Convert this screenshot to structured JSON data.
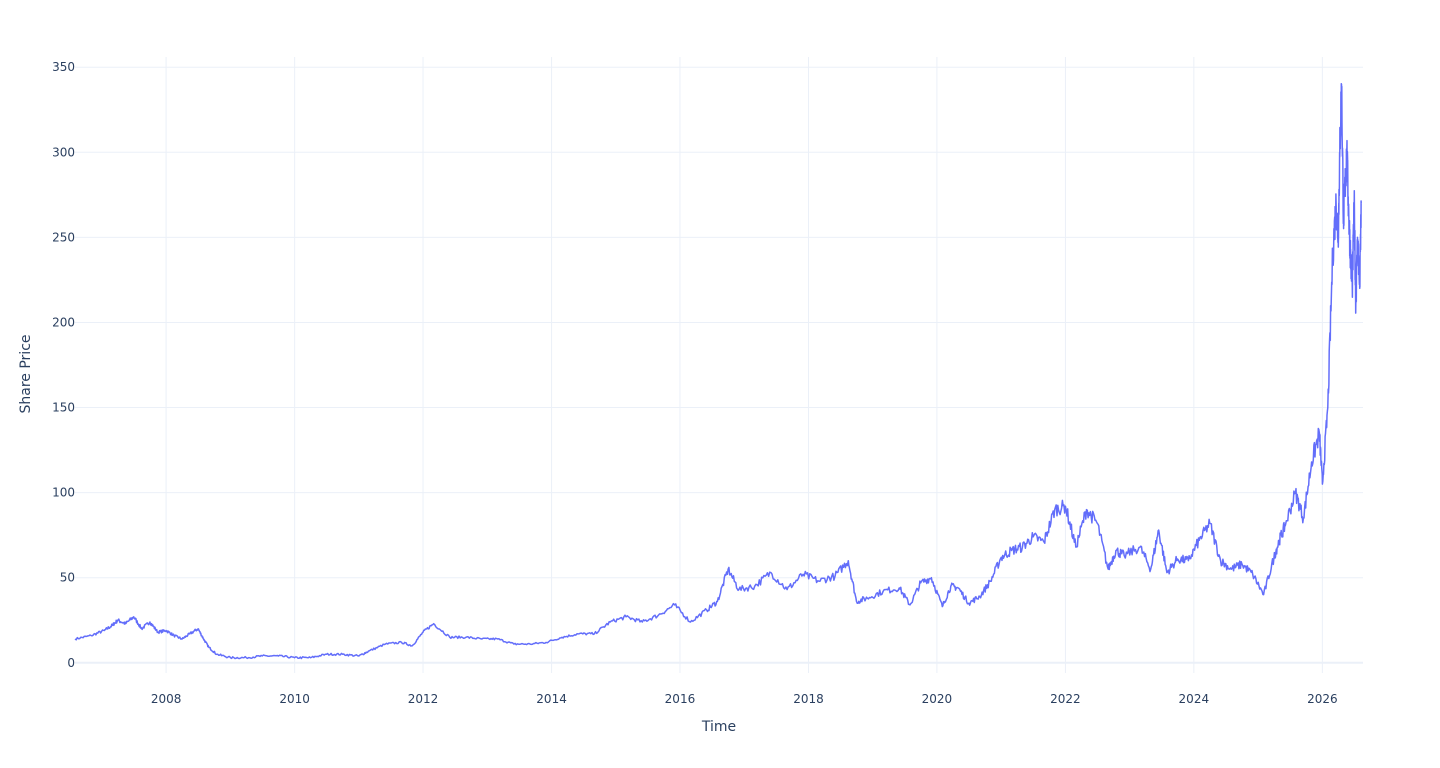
{
  "chart_data": {
    "type": "line",
    "xlabel": "Time",
    "ylabel": "Share Price",
    "xlim": [
      "2006-08-01",
      "2026-08-20"
    ],
    "ylim": [
      -6,
      356
    ],
    "x_ticks": [
      "2008",
      "2010",
      "2012",
      "2014",
      "2016",
      "2018",
      "2020",
      "2022",
      "2024",
      "2026"
    ],
    "y_ticks": [
      0,
      50,
      100,
      150,
      200,
      250,
      300,
      350
    ],
    "grid": true,
    "legend": "none",
    "colors": {
      "line": "#636efa",
      "grid": "#ebf0f8",
      "text": "#2a3f5f",
      "background": "#ffffff"
    },
    "series": [
      {
        "x": [
          "2006-08-01",
          "2006-11-01",
          "2007-01-15",
          "2007-03-01",
          "2007-04-01",
          "2007-05-15",
          "2007-07-01",
          "2007-08-15",
          "2007-10-01",
          "2007-11-15",
          "2008-01-01",
          "2008-02-15",
          "2008-04-01",
          "2008-05-15",
          "2008-07-01",
          "2008-08-01",
          "2008-09-01",
          "2008-10-15",
          "2009-01-01",
          "2009-04-01",
          "2009-07-01",
          "2009-10-01",
          "2010-01-01",
          "2010-04-01",
          "2010-07-01",
          "2010-10-01",
          "2011-01-01",
          "2011-03-01",
          "2011-06-01",
          "2011-09-01",
          "2011-11-01",
          "2012-01-01",
          "2012-03-01",
          "2012-06-01",
          "2012-09-01",
          "2012-12-01",
          "2013-03-01",
          "2013-06-01",
          "2013-09-01",
          "2013-12-01",
          "2014-03-01",
          "2014-06-01",
          "2014-09-01",
          "2014-12-01",
          "2015-03-01",
          "2015-06-01",
          "2015-09-01",
          "2015-12-01",
          "2016-03-01",
          "2016-06-01",
          "2016-08-01",
          "2016-10-01",
          "2016-12-01",
          "2017-03-01",
          "2017-06-01",
          "2017-09-01",
          "2017-12-01",
          "2018-03-01",
          "2018-06-01",
          "2018-08-15",
          "2018-10-01",
          "2018-12-01",
          "2019-03-01",
          "2019-06-01",
          "2019-08-01",
          "2019-10-01",
          "2019-12-01",
          "2020-02-01",
          "2020-03-20",
          "2020-05-01",
          "2020-07-01",
          "2020-09-01",
          "2020-11-01",
          "2021-01-01",
          "2021-03-01",
          "2021-05-01",
          "2021-07-01",
          "2021-09-01",
          "2021-11-01",
          "2022-01-01",
          "2022-03-01",
          "2022-05-01",
          "2022-07-01",
          "2022-09-01",
          "2022-10-15",
          "2022-12-01",
          "2023-03-01",
          "2023-05-01",
          "2023-06-15",
          "2023-08-01",
          "2023-10-01",
          "2023-12-01",
          "2024-02-01",
          "2024-04-01",
          "2024-06-01",
          "2024-08-01",
          "2024-10-01",
          "2024-12-01",
          "2025-02-01",
          "2025-04-01",
          "2025-05-01",
          "2025-06-01",
          "2025-08-01",
          "2025-09-15",
          "2025-11-01",
          "2025-12-15",
          "2026-01-01",
          "2026-02-01",
          "2026-03-01",
          "2026-03-20",
          "2026-04-01",
          "2026-04-10",
          "2026-04-20",
          "2026-05-01",
          "2026-05-10",
          "2026-05-20",
          "2026-06-01",
          "2026-06-10",
          "2026-06-20",
          "2026-07-01",
          "2026-07-10",
          "2026-07-20",
          "2026-08-01",
          "2026-08-10"
        ],
        "y": [
          14,
          16,
          19,
          22,
          25,
          23,
          27,
          20,
          24,
          18,
          19,
          16,
          14,
          17,
          20,
          14,
          9,
          5,
          3,
          3,
          4,
          4,
          3,
          3,
          5,
          5,
          4,
          7,
          11,
          12,
          10,
          18,
          23,
          15,
          15,
          14,
          14,
          11,
          11,
          12,
          15,
          17,
          17,
          24,
          27,
          24,
          28,
          34,
          24,
          31,
          36,
          55,
          43,
          45,
          53,
          43,
          52,
          48,
          51,
          60,
          36,
          38,
          42,
          44,
          34,
          47,
          50,
          33,
          45,
          44,
          35,
          39,
          48,
          62,
          66,
          68,
          74,
          71,
          90,
          92,
          68,
          90,
          82,
          55,
          66,
          63,
          68,
          55,
          78,
          53,
          61,
          60,
          72,
          82,
          60,
          55,
          58,
          52,
          40,
          62,
          72,
          80,
          100,
          85,
          118,
          135,
          105,
          150,
          240,
          270,
          250,
          300,
          340,
          260,
          280,
          300,
          260,
          240,
          220,
          270,
          210,
          250,
          220,
          270
        ]
      }
    ]
  }
}
